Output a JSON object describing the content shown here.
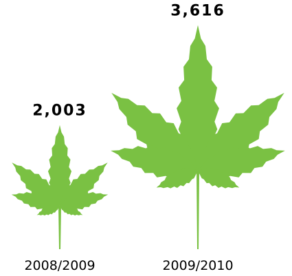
{
  "chart_data": {
    "type": "pictogram",
    "categories": [
      "2008/2009",
      "2009/2010"
    ],
    "values": [
      2003,
      3616
    ],
    "value_labels": [
      "2,003",
      "3,616"
    ],
    "color": "#7ac143"
  }
}
